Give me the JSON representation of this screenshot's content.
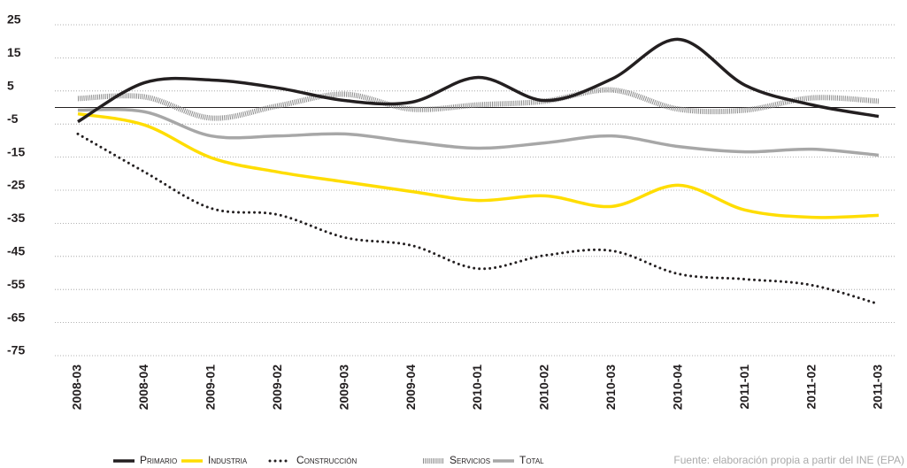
{
  "chart_data": {
    "type": "line",
    "categories": [
      "2008-03",
      "2008-04",
      "2009-01",
      "2009-02",
      "2009-03",
      "2009-04",
      "2010-01",
      "2010-02",
      "2010-03",
      "2010-04",
      "2011-01",
      "2011-02",
      "2011-03"
    ],
    "series": [
      {
        "name": "Primario",
        "color": "#231f20",
        "line_style": "solid",
        "values": [
          -4.3,
          7.5,
          8.3,
          5.9,
          2.1,
          1.6,
          9.1,
          2.1,
          8.6,
          20.6,
          6.7,
          0.8,
          -2.7
        ]
      },
      {
        "name": "Industria",
        "color": "#ffdd00",
        "line_style": "solid",
        "values": [
          -1.9,
          -5.3,
          -15.2,
          -19.5,
          -22.5,
          -25.4,
          -28.1,
          -26.7,
          -29.9,
          -23.5,
          -31,
          -33.2,
          -32.6
        ]
      },
      {
        "name": "Construcción",
        "color": "#231f20",
        "line_style": "dotted",
        "values": [
          -8,
          -19.5,
          -30.5,
          -32.4,
          -39.3,
          -41.7,
          -48.7,
          -44.7,
          -43.3,
          -50.3,
          -51.9,
          -53.7,
          -59.4
        ]
      },
      {
        "name": "Servicios",
        "color": "#8a8a8a",
        "line_style": "striped",
        "values": [
          2.7,
          3.2,
          -3.2,
          0.5,
          4,
          -0.5,
          0.8,
          1.9,
          5.3,
          -0.5,
          -0.8,
          2.9,
          1.9
        ]
      },
      {
        "name": "Total",
        "color": "#a7a7a7",
        "line_style": "solid",
        "values": [
          -0.8,
          -1.3,
          -8.6,
          -8.6,
          -8,
          -10.4,
          -12.3,
          -10.7,
          -8.6,
          -11.8,
          -13.4,
          -12.6,
          -14.4
        ]
      }
    ],
    "ylim": [
      -75,
      25
    ],
    "yticks": [
      25,
      15,
      5,
      -5,
      -15,
      -25,
      -35,
      -45,
      -55,
      -65,
      -75
    ],
    "grid": true,
    "legend": "bottom",
    "source": "Fuente: elaboración propia a partir del INE (EPA)"
  }
}
